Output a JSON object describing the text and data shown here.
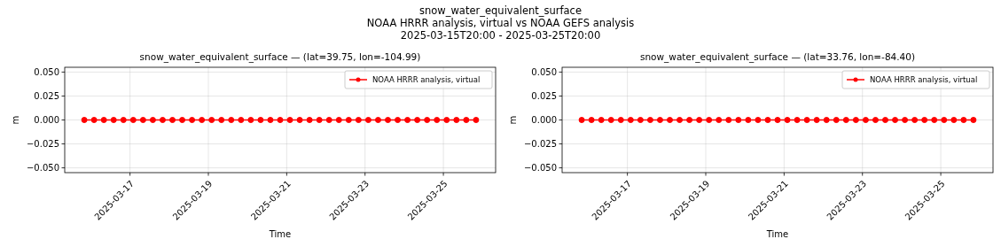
{
  "chart_data": [
    {
      "type": "line",
      "title": "snow_water_equivalent_surface — (lat=39.75, lon=-104.99)",
      "annotations": [
        "snow_water_equivalent_surface",
        "NOAA HRRR analysis, virtual vs NOAA GEFS analysis",
        "2025-03-15T20:00 - 2025-03-25T20:00"
      ],
      "xlabel": "Time",
      "ylabel": "m",
      "x": [
        "2025-03-15T20:00",
        "2025-03-16T02:00",
        "2025-03-16T08:00",
        "2025-03-16T14:00",
        "2025-03-16T20:00",
        "2025-03-17T02:00",
        "2025-03-17T08:00",
        "2025-03-17T14:00",
        "2025-03-17T20:00",
        "2025-03-18T02:00",
        "2025-03-18T08:00",
        "2025-03-18T14:00",
        "2025-03-18T20:00",
        "2025-03-19T02:00",
        "2025-03-19T08:00",
        "2025-03-19T14:00",
        "2025-03-19T20:00",
        "2025-03-20T02:00",
        "2025-03-20T08:00",
        "2025-03-20T14:00",
        "2025-03-20T20:00",
        "2025-03-21T02:00",
        "2025-03-21T08:00",
        "2025-03-21T14:00",
        "2025-03-21T20:00",
        "2025-03-22T02:00",
        "2025-03-22T08:00",
        "2025-03-22T14:00",
        "2025-03-22T20:00",
        "2025-03-23T02:00",
        "2025-03-23T08:00",
        "2025-03-23T14:00",
        "2025-03-23T20:00",
        "2025-03-24T02:00",
        "2025-03-24T08:00",
        "2025-03-24T14:00",
        "2025-03-24T20:00",
        "2025-03-25T02:00",
        "2025-03-25T08:00",
        "2025-03-25T14:00",
        "2025-03-25T20:00"
      ],
      "series": [
        {
          "name": "NOAA HRRR analysis, virtual",
          "color": "#ff0000",
          "values": [
            0,
            0,
            0,
            0,
            0,
            0,
            0,
            0,
            0,
            0,
            0,
            0,
            0,
            0,
            0,
            0,
            0,
            0,
            0,
            0,
            0,
            0,
            0,
            0,
            0,
            0,
            0,
            0,
            0,
            0,
            0,
            0,
            0,
            0,
            0,
            0,
            0,
            0,
            0,
            0,
            0
          ]
        }
      ],
      "xlim": [
        "2025-03-15T08:00",
        "2025-03-26T08:00"
      ],
      "xticks": [
        "2025-03-17",
        "2025-03-19",
        "2025-03-21",
        "2025-03-23",
        "2025-03-25"
      ],
      "ylim": [
        -0.055,
        0.055
      ],
      "yticks": [
        {
          "value": -0.05,
          "label": "−0.050"
        },
        {
          "value": -0.025,
          "label": "−0.025"
        },
        {
          "value": 0,
          "label": "0.000"
        },
        {
          "value": 0.025,
          "label": "0.025"
        },
        {
          "value": 0.05,
          "label": "0.050"
        }
      ],
      "grid": true,
      "legend": "top right",
      "marker": "circle",
      "line_style": "solid"
    },
    {
      "type": "line",
      "title": "snow_water_equivalent_surface — (lat=33.76, lon=-84.40)",
      "xlabel": "Time",
      "ylabel": "m",
      "x": [
        "2025-03-15T20:00",
        "2025-03-16T02:00",
        "2025-03-16T08:00",
        "2025-03-16T14:00",
        "2025-03-16T20:00",
        "2025-03-17T02:00",
        "2025-03-17T08:00",
        "2025-03-17T14:00",
        "2025-03-17T20:00",
        "2025-03-18T02:00",
        "2025-03-18T08:00",
        "2025-03-18T14:00",
        "2025-03-18T20:00",
        "2025-03-19T02:00",
        "2025-03-19T08:00",
        "2025-03-19T14:00",
        "2025-03-19T20:00",
        "2025-03-20T02:00",
        "2025-03-20T08:00",
        "2025-03-20T14:00",
        "2025-03-20T20:00",
        "2025-03-21T02:00",
        "2025-03-21T08:00",
        "2025-03-21T14:00",
        "2025-03-21T20:00",
        "2025-03-22T02:00",
        "2025-03-22T08:00",
        "2025-03-22T14:00",
        "2025-03-22T20:00",
        "2025-03-23T02:00",
        "2025-03-23T08:00",
        "2025-03-23T14:00",
        "2025-03-23T20:00",
        "2025-03-24T02:00",
        "2025-03-24T08:00",
        "2025-03-24T14:00",
        "2025-03-24T20:00",
        "2025-03-25T02:00",
        "2025-03-25T08:00",
        "2025-03-25T14:00",
        "2025-03-25T20:00"
      ],
      "series": [
        {
          "name": "NOAA HRRR analysis, virtual",
          "color": "#ff0000",
          "values": [
            0,
            0,
            0,
            0,
            0,
            0,
            0,
            0,
            0,
            0,
            0,
            0,
            0,
            0,
            0,
            0,
            0,
            0,
            0,
            0,
            0,
            0,
            0,
            0,
            0,
            0,
            0,
            0,
            0,
            0,
            0,
            0,
            0,
            0,
            0,
            0,
            0,
            0,
            0,
            0,
            0
          ]
        }
      ],
      "xlim": [
        "2025-03-15T08:00",
        "2025-03-26T08:00"
      ],
      "xticks": [
        "2025-03-17",
        "2025-03-19",
        "2025-03-21",
        "2025-03-23",
        "2025-03-25"
      ],
      "ylim": [
        -0.055,
        0.055
      ],
      "yticks": [
        {
          "value": -0.05,
          "label": "−0.050"
        },
        {
          "value": -0.025,
          "label": "−0.025"
        },
        {
          "value": 0,
          "label": "0.000"
        },
        {
          "value": 0.025,
          "label": "0.025"
        },
        {
          "value": 0.05,
          "label": "0.050"
        }
      ],
      "grid": true,
      "legend": "top right",
      "marker": "circle",
      "line_style": "solid"
    }
  ]
}
